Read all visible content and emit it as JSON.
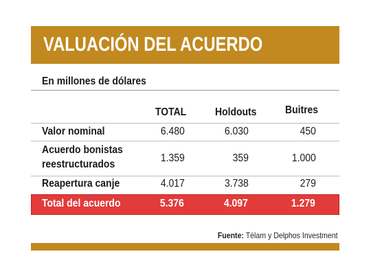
{
  "title": "VALUACIÓN DEL ACUERDO",
  "subtitle": "En millones de dólares",
  "columns": [
    "TOTAL",
    "Holdouts",
    "Buitres"
  ],
  "rows": [
    {
      "label_lines": [
        "Valor nominal"
      ],
      "values": [
        "6.480",
        "6.030",
        "450"
      ]
    },
    {
      "label_lines": [
        "Acuerdo bonistas",
        "reestructurados"
      ],
      "values": [
        "1.359",
        "359",
        "1.000"
      ]
    },
    {
      "label_lines": [
        "Reapertura canje"
      ],
      "values": [
        "4.017",
        "3.738",
        "279"
      ]
    }
  ],
  "total": {
    "label": "Total del acuerdo",
    "values": [
      "5.376",
      "4.097",
      "1.279"
    ]
  },
  "source": {
    "prefix": "Fuente:",
    "text": "Télam y Delphos Investment"
  },
  "colors": {
    "accent": "#c1891f",
    "total_row": "#e23b3a"
  }
}
